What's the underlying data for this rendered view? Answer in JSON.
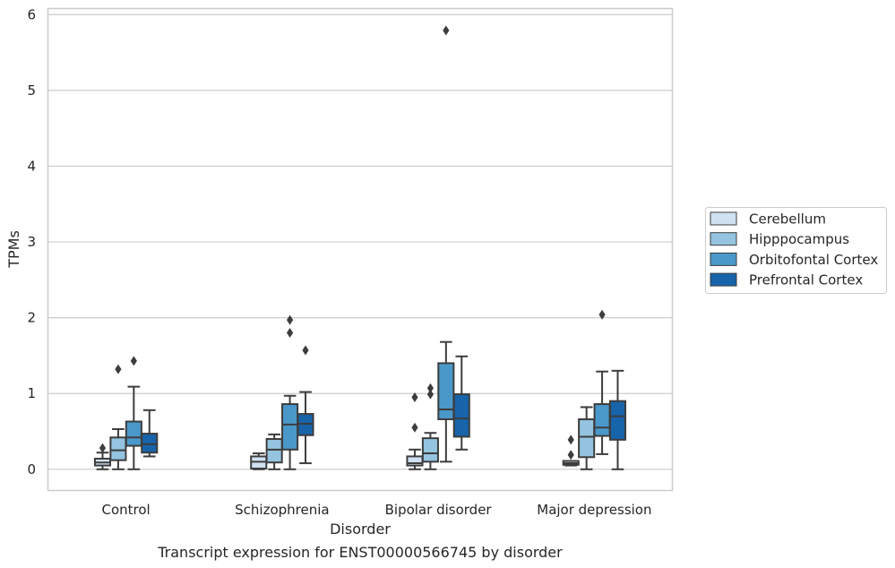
{
  "chart_data": {
    "type": "box",
    "title": "Transcript expression for ENST00000566745 by disorder",
    "xlabel": "Disorder",
    "ylabel": "TPMs",
    "ylim": [
      -0.28,
      6.08
    ],
    "yticks": [
      0,
      1,
      2,
      3,
      4,
      5,
      6
    ],
    "grid": true,
    "legend_position": "right",
    "categories": [
      "Control",
      "Schizophrenia",
      "Bipolar disorder",
      "Major depression"
    ],
    "series": [
      {
        "name": "Cerebellum",
        "color": "#d0e1f2",
        "boxes": [
          {
            "whisker_low": 0.0,
            "q1": 0.05,
            "median": 0.09,
            "q3": 0.14,
            "whisker_high": 0.22,
            "outliers": [
              0.28
            ]
          },
          {
            "whisker_low": 0.0,
            "q1": 0.01,
            "median": 0.1,
            "q3": 0.17,
            "whisker_high": 0.21,
            "outliers": []
          },
          {
            "whisker_low": 0.0,
            "q1": 0.05,
            "median": 0.08,
            "q3": 0.17,
            "whisker_high": 0.26,
            "outliers": [
              0.55,
              0.95
            ]
          },
          {
            "whisker_low": 0.05,
            "q1": 0.06,
            "median": 0.08,
            "q3": 0.11,
            "whisker_high": 0.11,
            "outliers": [
              0.19,
              0.39
            ]
          }
        ]
      },
      {
        "name": "Hipppocampus",
        "color": "#94c4df",
        "boxes": [
          {
            "whisker_low": 0.0,
            "q1": 0.12,
            "median": 0.25,
            "q3": 0.42,
            "whisker_high": 0.53,
            "outliers": [
              1.32
            ]
          },
          {
            "whisker_low": 0.0,
            "q1": 0.09,
            "median": 0.26,
            "q3": 0.4,
            "whisker_high": 0.46,
            "outliers": []
          },
          {
            "whisker_low": 0.0,
            "q1": 0.1,
            "median": 0.21,
            "q3": 0.41,
            "whisker_high": 0.48,
            "outliers": [
              0.99,
              1.07
            ]
          },
          {
            "whisker_low": 0.0,
            "q1": 0.16,
            "median": 0.43,
            "q3": 0.66,
            "whisker_high": 0.82,
            "outliers": []
          }
        ]
      },
      {
        "name": "Orbitofontal Cortex",
        "color": "#4a98c9",
        "boxes": [
          {
            "whisker_low": 0.0,
            "q1": 0.31,
            "median": 0.42,
            "q3": 0.63,
            "whisker_high": 1.09,
            "outliers": [
              1.43
            ]
          },
          {
            "whisker_low": 0.0,
            "q1": 0.26,
            "median": 0.59,
            "q3": 0.86,
            "whisker_high": 0.97,
            "outliers": [
              1.8,
              1.97
            ]
          },
          {
            "whisker_low": 0.1,
            "q1": 0.66,
            "median": 0.79,
            "q3": 1.4,
            "whisker_high": 1.68,
            "outliers": [
              5.79
            ]
          },
          {
            "whisker_low": 0.2,
            "q1": 0.44,
            "median": 0.55,
            "q3": 0.86,
            "whisker_high": 1.29,
            "outliers": [
              2.04
            ]
          }
        ]
      },
      {
        "name": "Prefrontal Cortex",
        "color": "#1764ab",
        "boxes": [
          {
            "whisker_low": 0.17,
            "q1": 0.22,
            "median": 0.33,
            "q3": 0.47,
            "whisker_high": 0.78,
            "outliers": []
          },
          {
            "whisker_low": 0.08,
            "q1": 0.45,
            "median": 0.6,
            "q3": 0.73,
            "whisker_high": 1.02,
            "outliers": [
              1.57
            ]
          },
          {
            "whisker_low": 0.26,
            "q1": 0.43,
            "median": 0.67,
            "q3": 0.99,
            "whisker_high": 1.49,
            "outliers": []
          },
          {
            "whisker_low": 0.0,
            "q1": 0.39,
            "median": 0.7,
            "q3": 0.9,
            "whisker_high": 1.3,
            "outliers": []
          }
        ]
      }
    ]
  }
}
